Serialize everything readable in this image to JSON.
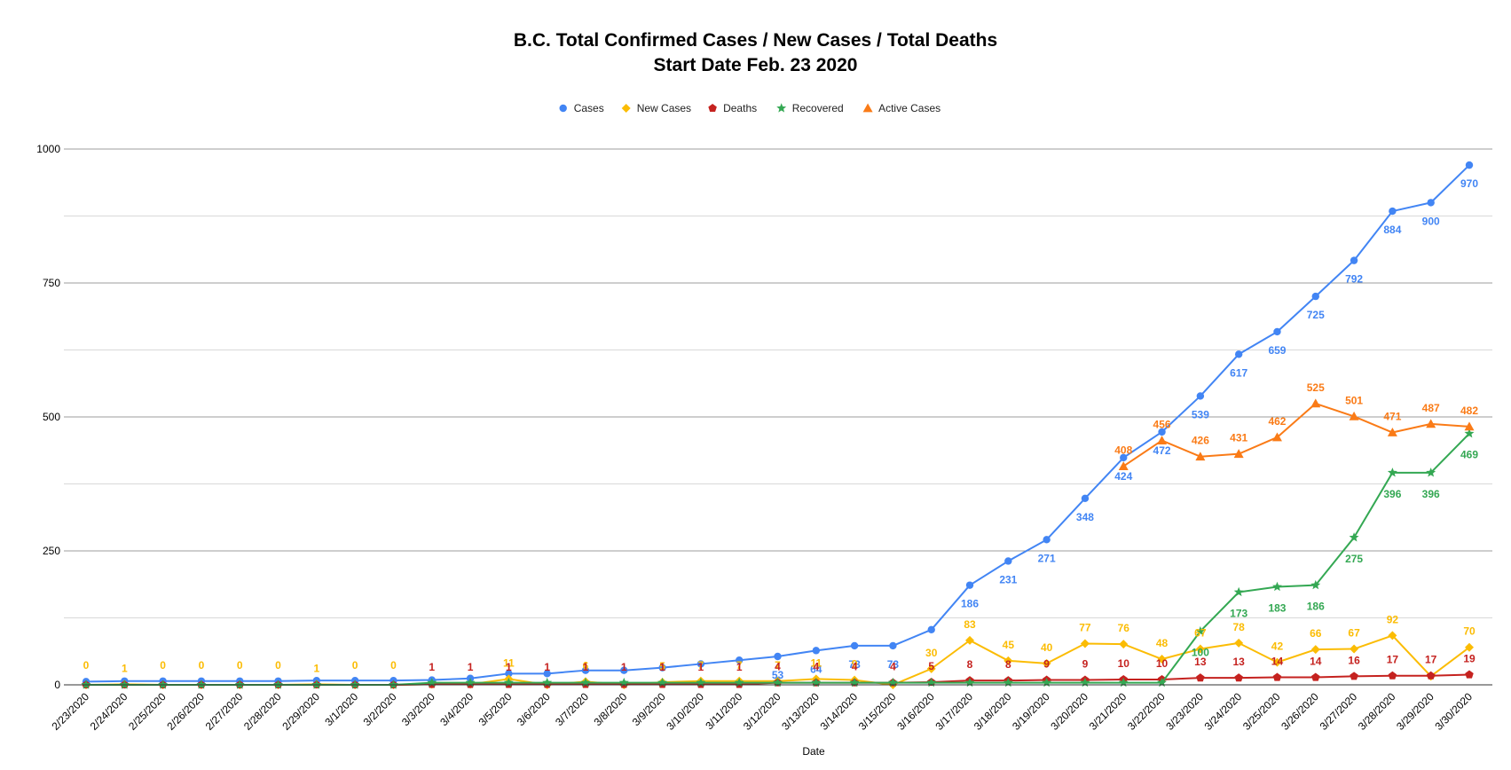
{
  "chart_data": {
    "type": "line",
    "title": "B.C. Total Confirmed Cases / New Cases / Total Deaths",
    "subtitle": "Start Date Feb. 23 2020",
    "xlabel": "Date",
    "ylabel": "",
    "ylim": [
      0,
      1000
    ],
    "y_ticks": [
      "0",
      "250",
      "500",
      "750",
      "1000"
    ],
    "grid": true,
    "legend_position": "top",
    "categories": [
      "2/23/2020",
      "2/24/2020",
      "2/25/2020",
      "2/26/2020",
      "2/27/2020",
      "2/28/2020",
      "2/29/2020",
      "3/1/2020",
      "3/2/2020",
      "3/3/2020",
      "3/4/2020",
      "3/5/2020",
      "3/6/2020",
      "3/7/2020",
      "3/8/2020",
      "3/9/2020",
      "3/10/2020",
      "3/11/2020",
      "3/12/2020",
      "3/13/2020",
      "3/14/2020",
      "3/15/2020",
      "3/16/2020",
      "3/17/2020",
      "3/18/2020",
      "3/19/2020",
      "3/20/2020",
      "3/21/2020",
      "3/22/2020",
      "3/23/2020",
      "3/24/2020",
      "3/25/2020",
      "3/26/2020",
      "3/27/2020",
      "3/28/2020",
      "3/29/2020",
      "3/30/2020"
    ],
    "series": [
      {
        "name": "Cases",
        "color": "#4285f4",
        "marker": "circle",
        "values": [
          6,
          7,
          7,
          7,
          7,
          7,
          8,
          8,
          8,
          9,
          12,
          21,
          21,
          27,
          27,
          32,
          39,
          46,
          53,
          64,
          73,
          73,
          103,
          186,
          231,
          271,
          348,
          424,
          472,
          539,
          617,
          659,
          725,
          792,
          884,
          900,
          970
        ],
        "labels": [
          null,
          null,
          null,
          null,
          null,
          null,
          null,
          null,
          null,
          null,
          null,
          null,
          null,
          null,
          null,
          null,
          null,
          null,
          "53",
          "64",
          "73",
          "73",
          null,
          "186",
          "231",
          "271",
          "348",
          "424",
          "472",
          "539",
          "617",
          "659",
          "725",
          "792",
          "884",
          "900",
          "970"
        ]
      },
      {
        "name": "New Cases",
        "color": "#fbbc04",
        "marker": "diamond",
        "values": [
          0,
          1,
          0,
          0,
          0,
          0,
          1,
          0,
          0,
          1,
          1,
          11,
          0,
          6,
          0,
          5,
          7,
          7,
          7,
          11,
          9,
          0,
          30,
          83,
          45,
          40,
          77,
          76,
          48,
          67,
          78,
          42,
          66,
          67,
          92,
          16,
          70
        ],
        "labels": [
          "0",
          "1",
          "0",
          "0",
          "0",
          "0",
          "1",
          "0",
          "0",
          null,
          null,
          "11",
          null,
          "6",
          null,
          "5",
          "7",
          "7",
          "7",
          "11",
          "9",
          null,
          "30",
          "83",
          "45",
          "40",
          "77",
          "76",
          "48",
          "67",
          "78",
          "42",
          "66",
          "67",
          "92",
          null,
          "70"
        ]
      },
      {
        "name": "Deaths",
        "color": "#c5221f",
        "marker": "pentagon",
        "values": [
          0,
          0,
          0,
          0,
          0,
          0,
          0,
          0,
          0,
          1,
          1,
          1,
          1,
          1,
          1,
          1,
          1,
          1,
          4,
          4,
          4,
          4,
          5,
          8,
          8,
          9,
          9,
          10,
          10,
          13,
          13,
          14,
          14,
          16,
          17,
          17,
          19
        ],
        "labels": [
          null,
          null,
          null,
          null,
          null,
          null,
          null,
          null,
          null,
          "1",
          "1",
          "1",
          "1",
          "1",
          "1",
          "1",
          "1",
          "1",
          "4",
          "4",
          "4",
          "4",
          "5",
          "8",
          "8",
          "9",
          "9",
          "10",
          "10",
          "13",
          "13",
          "14",
          "14",
          "16",
          "17",
          "17",
          "19"
        ]
      },
      {
        "name": "Recovered",
        "color": "#34a853",
        "marker": "star",
        "values": [
          0,
          0,
          0,
          0,
          0,
          0,
          0,
          0,
          0,
          4,
          4,
          4,
          4,
          4,
          4,
          4,
          4,
          4,
          4,
          4,
          4,
          4,
          4,
          4,
          4,
          4,
          4,
          4,
          4,
          100,
          173,
          183,
          186,
          275,
          396,
          396,
          469
        ],
        "labels": [
          null,
          null,
          null,
          null,
          null,
          null,
          null,
          null,
          null,
          null,
          null,
          null,
          null,
          null,
          null,
          null,
          null,
          null,
          null,
          null,
          null,
          null,
          null,
          null,
          null,
          null,
          null,
          null,
          null,
          "100",
          "173",
          "183",
          "186",
          "275",
          "396",
          "396",
          "469"
        ]
      },
      {
        "name": "Active Cases",
        "color": "#fa7b17",
        "marker": "triangle",
        "values": [
          null,
          null,
          null,
          null,
          null,
          null,
          null,
          null,
          null,
          null,
          null,
          null,
          null,
          null,
          null,
          null,
          null,
          null,
          null,
          null,
          null,
          null,
          null,
          null,
          null,
          null,
          null,
          408,
          456,
          426,
          431,
          462,
          525,
          501,
          471,
          487,
          482
        ],
        "labels": [
          null,
          null,
          null,
          null,
          null,
          null,
          null,
          null,
          null,
          null,
          null,
          null,
          null,
          null,
          null,
          null,
          null,
          null,
          null,
          null,
          null,
          null,
          null,
          null,
          null,
          null,
          null,
          "408",
          "456",
          "426",
          "431",
          "462",
          "525",
          "501",
          "471",
          "487",
          "482"
        ]
      }
    ]
  }
}
